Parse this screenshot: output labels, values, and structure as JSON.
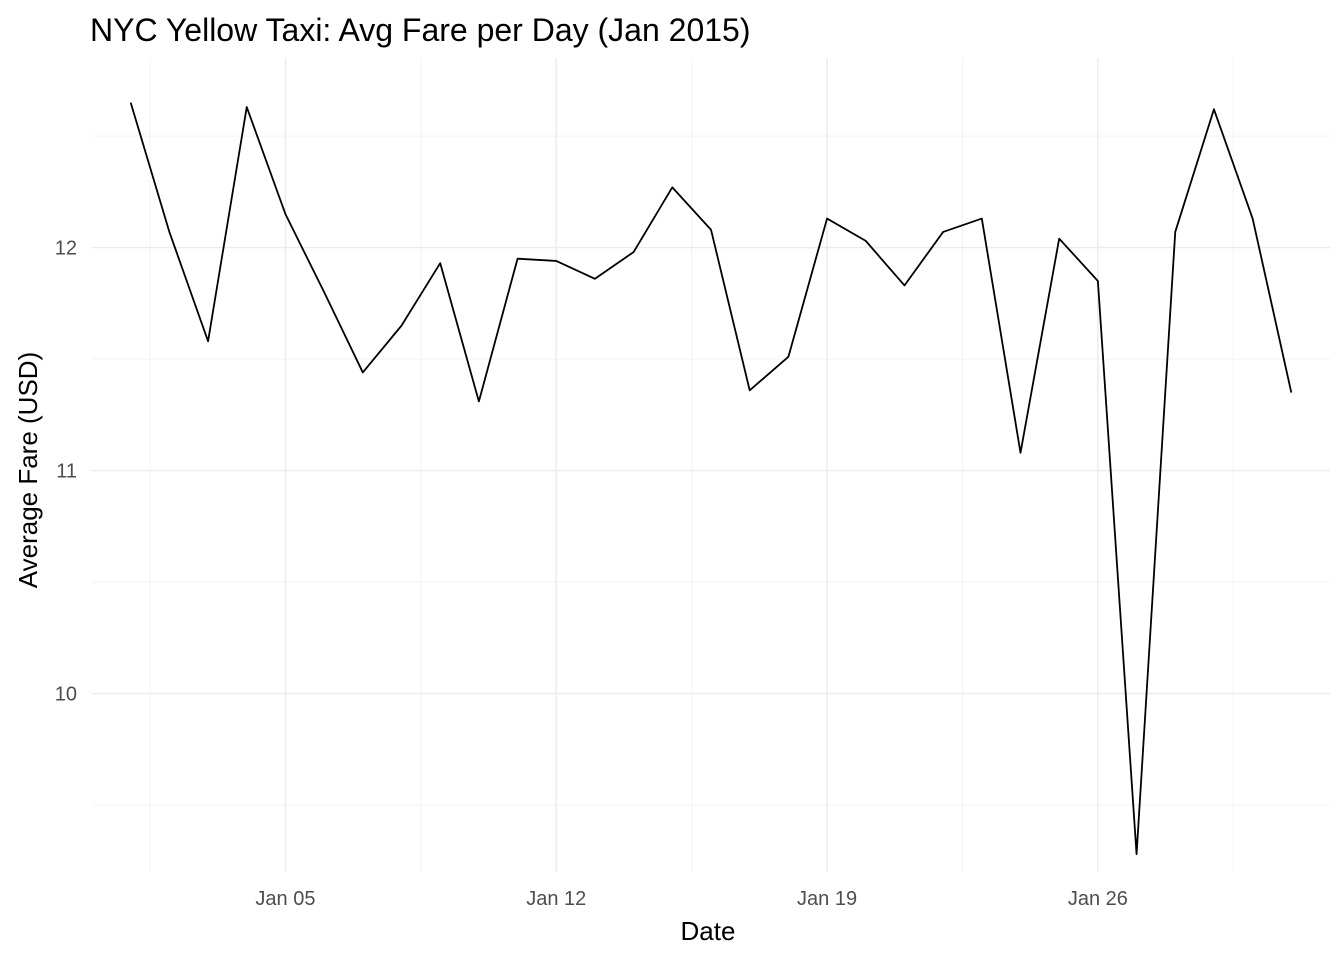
{
  "chart_data": {
    "type": "line",
    "title": "NYC Yellow Taxi: Avg Fare per Day (Jan 2015)",
    "xlabel": "Date",
    "ylabel": "Average Fare (USD)",
    "x_ticks": [
      {
        "label": "Jan 05",
        "date": "2015-01-05"
      },
      {
        "label": "Jan 12",
        "date": "2015-01-12"
      },
      {
        "label": "Jan 19",
        "date": "2015-01-19"
      },
      {
        "label": "Jan 26",
        "date": "2015-01-26"
      }
    ],
    "y_ticks": [
      10,
      11,
      12
    ],
    "xlim": [
      "2014-12-31",
      "2015-02-01"
    ],
    "ylim": [
      9.2,
      12.85
    ],
    "grid": true,
    "legend": "none",
    "line_color": "#000000",
    "series": [
      {
        "x": [
          "2015-01-01",
          "2015-01-02",
          "2015-01-03",
          "2015-01-04",
          "2015-01-05",
          "2015-01-06",
          "2015-01-07",
          "2015-01-08",
          "2015-01-09",
          "2015-01-10",
          "2015-01-11",
          "2015-01-12",
          "2015-01-13",
          "2015-01-14",
          "2015-01-15",
          "2015-01-16",
          "2015-01-17",
          "2015-01-18",
          "2015-01-19",
          "2015-01-20",
          "2015-01-21",
          "2015-01-22",
          "2015-01-23",
          "2015-01-24",
          "2015-01-25",
          "2015-01-26",
          "2015-01-27",
          "2015-01-28",
          "2015-01-29",
          "2015-01-30",
          "2015-01-31"
        ],
        "values": [
          12.65,
          12.07,
          11.58,
          12.63,
          12.15,
          11.8,
          11.44,
          11.65,
          11.93,
          11.31,
          11.95,
          11.94,
          11.86,
          11.98,
          12.27,
          12.08,
          11.36,
          11.51,
          12.13,
          12.03,
          11.83,
          12.07,
          12.13,
          11.08,
          12.04,
          11.85,
          9.28,
          12.07,
          12.62,
          12.13,
          11.35
        ]
      }
    ]
  }
}
